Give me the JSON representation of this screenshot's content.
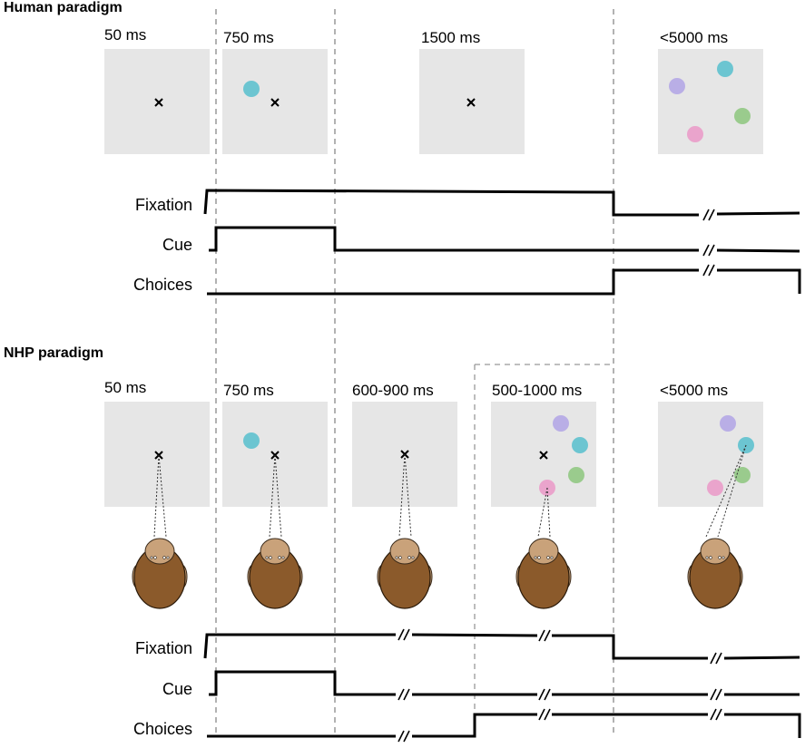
{
  "human": {
    "title": "Human paradigm",
    "epochs": [
      {
        "duration": "50 ms",
        "stimulus": "fixation"
      },
      {
        "duration": "750 ms",
        "stimulus": "cue",
        "cue_color": "#6cc5d1"
      },
      {
        "duration": "1500 ms",
        "stimulus": "fixation"
      },
      {
        "duration": "<5000 ms",
        "stimulus": "choices"
      }
    ],
    "signals": [
      "Fixation",
      "Cue",
      "Choices"
    ]
  },
  "nhp": {
    "title": "NHP paradigm",
    "epochs": [
      {
        "duration": "50 ms",
        "stimulus": "fixation"
      },
      {
        "duration": "750 ms",
        "stimulus": "cue",
        "cue_color": "#6cc5d1"
      },
      {
        "duration": "600-900 ms",
        "stimulus": "fixation"
      },
      {
        "duration": "500-1000 ms",
        "stimulus": "fixation+choices"
      },
      {
        "duration": "<5000 ms",
        "stimulus": "choices"
      }
    ],
    "signals": [
      "Fixation",
      "Cue",
      "Choices"
    ]
  },
  "colors": {
    "screen": "#e6e6e6",
    "cyan": "#6cc5d1",
    "lavender": "#b9aee6",
    "green": "#9acb8d",
    "pink": "#eaa4cc",
    "monkey_body": "#8b5a2b",
    "monkey_head": "#c9a27a"
  }
}
